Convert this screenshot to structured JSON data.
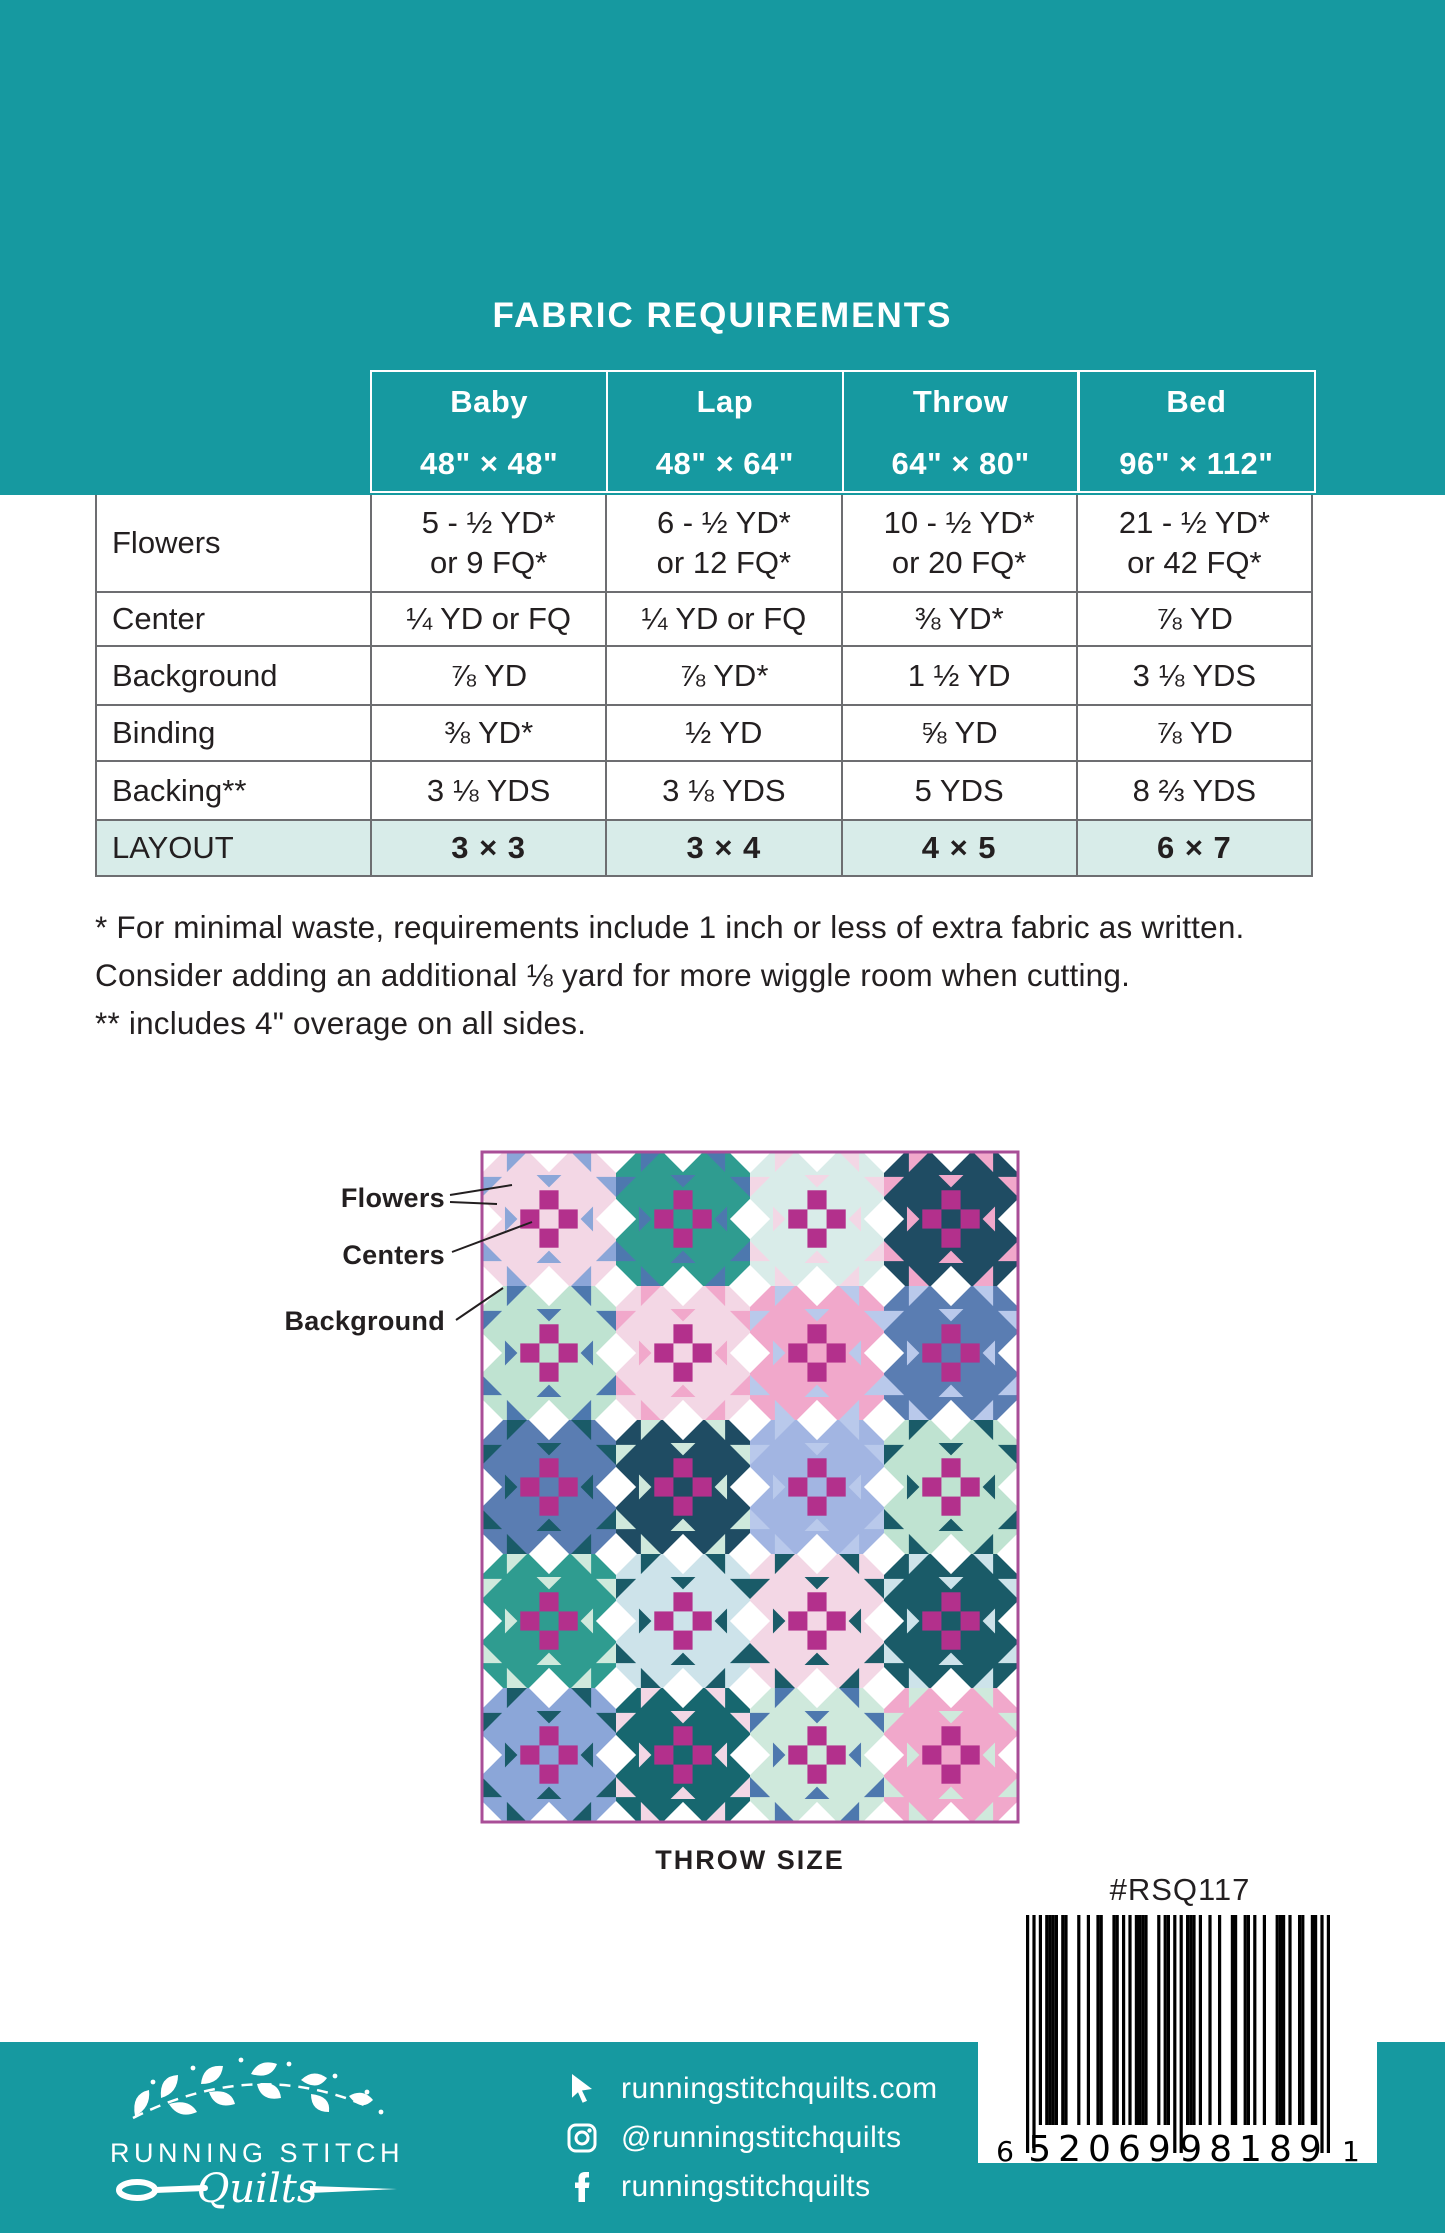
{
  "colors": {
    "teal": "#1699A0",
    "layout_row_bg": "#D8ECE9",
    "table_border": "#6d6e71",
    "magenta": "#B3308C",
    "quilt_border": "#A94E97",
    "text": "#231f20"
  },
  "title": "FABRIC REQUIREMENTS",
  "table": {
    "size_columns": [
      {
        "name": "Baby",
        "dims": "48\" × 48\""
      },
      {
        "name": "Lap",
        "dims": "48\" × 64\""
      },
      {
        "name": "Throw",
        "dims": "64\" × 80\""
      },
      {
        "name": "Bed",
        "dims": "96\" × 112\""
      }
    ],
    "rows": [
      {
        "label": "Flowers",
        "values": [
          "5 - ½ YD*\nor 9 FQ*",
          "6 - ½ YD*\nor 12 FQ*",
          "10 - ½ YD*\nor 20 FQ*",
          "21 - ½ YD*\nor 42 FQ*"
        ],
        "highlight": false
      },
      {
        "label": "Center",
        "values": [
          "¼ YD or FQ",
          "¼ YD or FQ",
          "⅜ YD*",
          "⅞ YD"
        ],
        "highlight": false
      },
      {
        "label": "Background",
        "values": [
          "⅞ YD",
          "⅞ YD*",
          "1 ½ YD",
          "3 ⅛ YDS"
        ],
        "highlight": false
      },
      {
        "label": "Binding",
        "values": [
          "⅜ YD*",
          "½ YD",
          "⅝ YD",
          "⅞ YD"
        ],
        "highlight": false
      },
      {
        "label": "Backing**",
        "values": [
          "3 ⅛ YDS",
          "3 ⅛ YDS",
          "5 YDS",
          "8 ⅔ YDS"
        ],
        "highlight": false
      },
      {
        "label": "LAYOUT",
        "values": [
          "3 × 3",
          "3 × 4",
          "4 × 5",
          "6 × 7"
        ],
        "highlight": true
      }
    ]
  },
  "notes": [
    "* For minimal waste, requirements include 1 inch or less of extra fabric as written. Consider adding an additional ⅛ yard for more wiggle room when cutting.",
    "** includes 4\" overage on all sides."
  ],
  "diagram": {
    "labels": [
      {
        "text": "Flowers"
      },
      {
        "text": "Centers"
      },
      {
        "text": "Background"
      }
    ],
    "caption": "THROW SIZE",
    "palette": {
      "pinkPale": "#F3D7E5",
      "pinkMed": "#F1A8CB",
      "periwinkle": "#8BA6D8",
      "periLight": "#B9C9EB",
      "lavender": "#A2B5E2",
      "blueMed": "#4D78AE",
      "slate": "#5A7DB2",
      "teal": "#2F9C90",
      "tealDark": "#1A5B68",
      "navy": "#1F4C63",
      "tealDeep": "#17676F",
      "mint": "#BFE3D1",
      "mintLt": "#CFE9DC",
      "ice": "#D9ECE9",
      "iceBlue": "#CDE3EA",
      "white": "#FFFFFF"
    },
    "blocks": [
      [
        [
          "pinkPale",
          "periwinkle"
        ],
        [
          "teal",
          "blueMed"
        ],
        [
          "ice",
          "pinkPale"
        ],
        [
          "navy",
          "pinkMed"
        ]
      ],
      [
        [
          "mint",
          "blueMed"
        ],
        [
          "pinkPale",
          "pinkMed"
        ],
        [
          "pinkMed",
          "periLight"
        ],
        [
          "slate",
          "periLight"
        ]
      ],
      [
        [
          "slate",
          "tealDark"
        ],
        [
          "navy",
          "mintLt"
        ],
        [
          "lavender",
          "periLight"
        ],
        [
          "mint",
          "tealDark"
        ]
      ],
      [
        [
          "teal",
          "mintLt"
        ],
        [
          "iceBlue",
          "tealDark"
        ],
        [
          "pinkPale",
          "tealDark"
        ],
        [
          "tealDark",
          "iceBlue"
        ]
      ],
      [
        [
          "periwinkle",
          "tealDark"
        ],
        [
          "tealDeep",
          "pinkPale"
        ],
        [
          "mintLt",
          "blueMed"
        ],
        [
          "pinkMed",
          "mintLt"
        ]
      ]
    ]
  },
  "product": {
    "sku": "#RSQ117",
    "barcode": {
      "digits": "652069981891",
      "lead": "6",
      "group1": "52069",
      "group2": "98189",
      "trail": "1"
    }
  },
  "footer": {
    "logo_line1": "RUNNING STITCH",
    "logo_line2": "Quilts",
    "links": [
      {
        "icon": "cursor-icon",
        "text": "runningstitchquilts.com"
      },
      {
        "icon": "instagram-icon",
        "text": "@runningstitchquilts"
      },
      {
        "icon": "facebook-icon",
        "text": "runningstitchquilts"
      }
    ]
  }
}
